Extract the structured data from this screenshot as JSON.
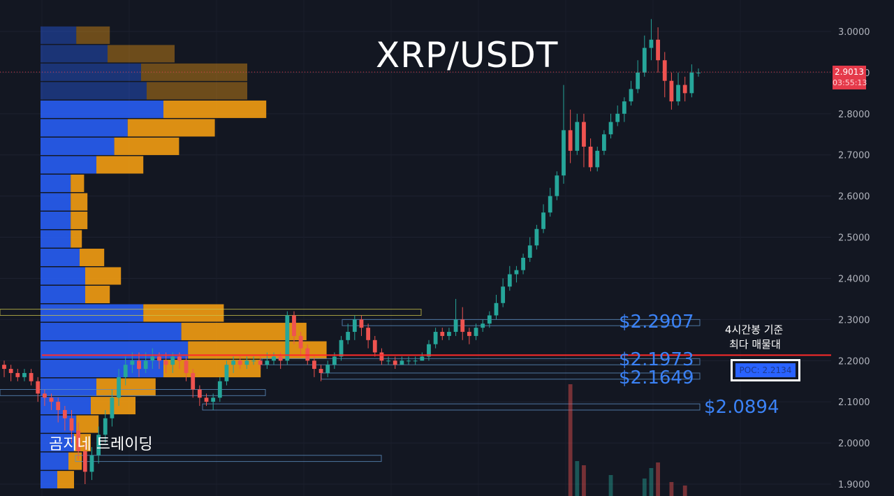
{
  "title": "XRP/USDT",
  "watermark": "곰지네 트레이딩",
  "last_price": {
    "value": "2.9013",
    "countdown": "03:55:13"
  },
  "annotations": {
    "level_1": "$2.2907",
    "level_2": "$2.1973",
    "level_3": "$2.1649",
    "level_4": "$2.0894",
    "note_line1": "4시간봉 기준",
    "note_line2": "최다 매물대",
    "poc_label": "POC: 2.2134"
  },
  "colors": {
    "background": "#131722",
    "up": "#26a69a",
    "down": "#ef5350",
    "vp_buy": "#2962ff",
    "vp_sell": "#f39c12",
    "poc_line": "#ff2a2a",
    "annotation": "#3b82f6"
  },
  "chart_data": {
    "type": "candlestick",
    "symbol": "XRP/USDT",
    "timeframe_note": "4시간봉",
    "y_axis": {
      "min": 1.88,
      "max": 3.04,
      "ticks": [
        "3.0000",
        "2.9000",
        "2.8000",
        "2.7000",
        "2.6000",
        "2.5000",
        "2.4000",
        "2.3000",
        "2.2000",
        "2.1000",
        "2.0000",
        "1.9000"
      ]
    },
    "current_price": 2.9013,
    "poc": 2.2134,
    "levels": [
      2.2907,
      2.1973,
      2.1649,
      2.0894
    ],
    "candles": [
      [
        2.19,
        2.18,
        2.2,
        2.16
      ],
      [
        2.18,
        2.17,
        2.19,
        2.15
      ],
      [
        2.17,
        2.16,
        2.18,
        2.15
      ],
      [
        2.16,
        2.17,
        2.18,
        2.15
      ],
      [
        2.17,
        2.15,
        2.18,
        2.14
      ],
      [
        2.15,
        2.12,
        2.16,
        2.1
      ],
      [
        2.12,
        2.11,
        2.13,
        2.09
      ],
      [
        2.11,
        2.1,
        2.12,
        2.08
      ],
      [
        2.1,
        2.08,
        2.11,
        2.05
      ],
      [
        2.08,
        2.06,
        2.09,
        2.03
      ],
      [
        2.06,
        2.03,
        2.08,
        2.0
      ],
      [
        2.03,
        1.98,
        2.05,
        1.96
      ],
      [
        1.98,
        1.93,
        2.0,
        1.9
      ],
      [
        1.93,
        1.97,
        1.99,
        1.91
      ],
      [
        1.97,
        2.02,
        2.04,
        1.95
      ],
      [
        2.02,
        2.06,
        2.08,
        2.0
      ],
      [
        2.06,
        2.11,
        2.13,
        2.04
      ],
      [
        2.11,
        2.16,
        2.18,
        2.09
      ],
      [
        2.16,
        2.19,
        2.21,
        2.14
      ],
      [
        2.19,
        2.2,
        2.22,
        2.17
      ],
      [
        2.2,
        2.18,
        2.22,
        2.16
      ],
      [
        2.18,
        2.2,
        2.22,
        2.17
      ],
      [
        2.2,
        2.21,
        2.23,
        2.18
      ],
      [
        2.21,
        2.2,
        2.22,
        2.18
      ],
      [
        2.2,
        2.19,
        2.22,
        2.17
      ],
      [
        2.19,
        2.21,
        2.22,
        2.17
      ],
      [
        2.21,
        2.2,
        2.22,
        2.18
      ],
      [
        2.2,
        2.17,
        2.21,
        2.15
      ],
      [
        2.17,
        2.13,
        2.18,
        2.11
      ],
      [
        2.13,
        2.11,
        2.14,
        2.09
      ],
      [
        2.11,
        2.1,
        2.12,
        2.09
      ],
      [
        2.1,
        2.11,
        2.12,
        2.08
      ],
      [
        2.11,
        2.15,
        2.16,
        2.1
      ],
      [
        2.15,
        2.19,
        2.2,
        2.14
      ],
      [
        2.19,
        2.2,
        2.21,
        2.17
      ],
      [
        2.2,
        2.19,
        2.21,
        2.18
      ],
      [
        2.19,
        2.2,
        2.21,
        2.18
      ],
      [
        2.2,
        2.2,
        2.21,
        2.19
      ],
      [
        2.2,
        2.19,
        2.21,
        2.18
      ],
      [
        2.19,
        2.2,
        2.22,
        2.18
      ],
      [
        2.2,
        2.21,
        2.22,
        2.19
      ],
      [
        2.21,
        2.2,
        2.22,
        2.18
      ],
      [
        2.2,
        2.31,
        2.32,
        2.19
      ],
      [
        2.31,
        2.26,
        2.32,
        2.24
      ],
      [
        2.26,
        2.23,
        2.27,
        2.21
      ],
      [
        2.23,
        2.2,
        2.24,
        2.19
      ],
      [
        2.2,
        2.18,
        2.21,
        2.16
      ],
      [
        2.18,
        2.17,
        2.19,
        2.15
      ],
      [
        2.17,
        2.19,
        2.2,
        2.16
      ],
      [
        2.19,
        2.21,
        2.22,
        2.18
      ],
      [
        2.21,
        2.25,
        2.26,
        2.2
      ],
      [
        2.25,
        2.27,
        2.29,
        2.24
      ],
      [
        2.27,
        2.3,
        2.31,
        2.25
      ],
      [
        2.3,
        2.28,
        2.31,
        2.26
      ],
      [
        2.28,
        2.25,
        2.29,
        2.23
      ],
      [
        2.25,
        2.22,
        2.26,
        2.21
      ],
      [
        2.22,
        2.2,
        2.23,
        2.19
      ],
      [
        2.2,
        2.2,
        2.21,
        2.19
      ],
      [
        2.2,
        2.19,
        2.21,
        2.18
      ],
      [
        2.19,
        2.2,
        2.21,
        2.19
      ],
      [
        2.2,
        2.2,
        2.21,
        2.19
      ],
      [
        2.2,
        2.2,
        2.21,
        2.19
      ],
      [
        2.2,
        2.21,
        2.22,
        2.2
      ],
      [
        2.21,
        2.24,
        2.25,
        2.2
      ],
      [
        2.24,
        2.27,
        2.28,
        2.23
      ],
      [
        2.27,
        2.26,
        2.28,
        2.25
      ],
      [
        2.26,
        2.27,
        2.28,
        2.25
      ],
      [
        2.27,
        2.3,
        2.35,
        2.26
      ],
      [
        2.3,
        2.27,
        2.33,
        2.25
      ],
      [
        2.27,
        2.26,
        2.28,
        2.24
      ],
      [
        2.26,
        2.28,
        2.29,
        2.25
      ],
      [
        2.28,
        2.29,
        2.3,
        2.27
      ],
      [
        2.29,
        2.31,
        2.32,
        2.28
      ],
      [
        2.31,
        2.34,
        2.36,
        2.3
      ],
      [
        2.34,
        2.38,
        2.4,
        2.33
      ],
      [
        2.38,
        2.41,
        2.43,
        2.37
      ],
      [
        2.41,
        2.42,
        2.43,
        2.39
      ],
      [
        2.42,
        2.45,
        2.46,
        2.41
      ],
      [
        2.45,
        2.48,
        2.5,
        2.44
      ],
      [
        2.48,
        2.52,
        2.53,
        2.47
      ],
      [
        2.52,
        2.56,
        2.58,
        2.51
      ],
      [
        2.56,
        2.6,
        2.62,
        2.55
      ],
      [
        2.6,
        2.65,
        2.66,
        2.59
      ],
      [
        2.65,
        2.76,
        2.87,
        2.63
      ],
      [
        2.76,
        2.71,
        2.81,
        2.68
      ],
      [
        2.71,
        2.78,
        2.8,
        2.7
      ],
      [
        2.78,
        2.72,
        2.8,
        2.67
      ],
      [
        2.72,
        2.67,
        2.74,
        2.66
      ],
      [
        2.67,
        2.71,
        2.72,
        2.66
      ],
      [
        2.71,
        2.75,
        2.76,
        2.7
      ],
      [
        2.75,
        2.78,
        2.8,
        2.74
      ],
      [
        2.78,
        2.8,
        2.82,
        2.77
      ],
      [
        2.8,
        2.83,
        2.84,
        2.78
      ],
      [
        2.83,
        2.86,
        2.88,
        2.82
      ],
      [
        2.86,
        2.9,
        2.93,
        2.85
      ],
      [
        2.9,
        2.96,
        2.99,
        2.89
      ],
      [
        2.96,
        2.98,
        3.03,
        2.93
      ],
      [
        2.98,
        2.93,
        3.01,
        2.9
      ],
      [
        2.93,
        2.88,
        2.95,
        2.84
      ],
      [
        2.88,
        2.83,
        2.9,
        2.81
      ],
      [
        2.83,
        2.87,
        2.9,
        2.82
      ],
      [
        2.87,
        2.85,
        2.89,
        2.83
      ],
      [
        2.85,
        2.9,
        2.92,
        2.84
      ],
      [
        2.9,
        2.9,
        2.91,
        2.89
      ]
    ],
    "volume_profile": [
      [
        2.99,
        0.32,
        0.3
      ],
      [
        2.945,
        0.6,
        0.6
      ],
      [
        2.9,
        0.9,
        0.95
      ],
      [
        2.855,
        0.95,
        0.9
      ],
      [
        2.81,
        1.1,
        0.92
      ],
      [
        2.765,
        0.78,
        0.78
      ],
      [
        2.72,
        0.66,
        0.58
      ],
      [
        2.675,
        0.5,
        0.42
      ],
      [
        2.63,
        0.27,
        0.12
      ],
      [
        2.585,
        0.27,
        0.15
      ],
      [
        2.54,
        0.27,
        0.15
      ],
      [
        2.495,
        0.27,
        0.1
      ],
      [
        2.45,
        0.35,
        0.22
      ],
      [
        2.405,
        0.4,
        0.32
      ],
      [
        2.36,
        0.4,
        0.22
      ],
      [
        2.315,
        0.92,
        0.72
      ],
      [
        2.27,
        1.26,
        1.12
      ],
      [
        2.225,
        1.32,
        1.24
      ],
      [
        2.18,
        1.1,
        0.87
      ],
      [
        2.135,
        0.5,
        0.53
      ],
      [
        2.09,
        0.45,
        0.4
      ],
      [
        2.045,
        0.32,
        0.2
      ],
      [
        2.0,
        0.3,
        0.15
      ],
      [
        1.955,
        0.25,
        0.12
      ],
      [
        1.91,
        0.15,
        0.15
      ]
    ]
  }
}
